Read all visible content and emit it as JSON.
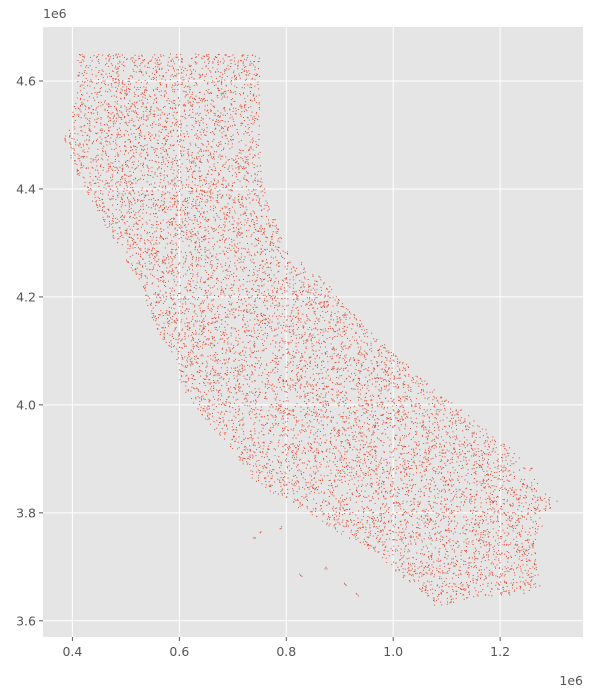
{
  "chart_data": {
    "type": "scatter",
    "title": "",
    "xlabel": "",
    "ylabel": "",
    "style": "ggplot",
    "grid": true,
    "background_color": "#e5e5e5",
    "grid_color": "#ffffff",
    "point_color": "#e24a33",
    "xlim": [
      345000,
      1355000
    ],
    "ylim": [
      3570000,
      4700000
    ],
    "x_ticks": [
      400000,
      600000,
      800000,
      1000000,
      1200000
    ],
    "x_tick_labels": [
      "0.4",
      "0.6",
      "0.8",
      "1.0",
      "1.2"
    ],
    "y_ticks": [
      3600000,
      3800000,
      4000000,
      4200000,
      4400000,
      4600000
    ],
    "y_tick_labels": [
      "3.6",
      "3.8",
      "4.0",
      "4.2",
      "4.4",
      "4.6"
    ],
    "x_offset_text": "1e6",
    "y_offset_text": "1e6",
    "point_count_approx": 10000,
    "outline": [
      [
        408000,
        4650000
      ],
      [
        750000,
        4650000
      ],
      [
        750000,
        4485000
      ],
      [
        760000,
        4400000
      ],
      [
        800000,
        4285000
      ],
      [
        880000,
        4225000
      ],
      [
        945000,
        4150000
      ],
      [
        1010000,
        4090000
      ],
      [
        1080000,
        4025000
      ],
      [
        1140000,
        3985000
      ],
      [
        1190000,
        3940000
      ],
      [
        1255000,
        3895000
      ],
      [
        1275000,
        3840000
      ],
      [
        1315000,
        3828000
      ],
      [
        1290000,
        3805000
      ],
      [
        1265000,
        3740000
      ],
      [
        1275000,
        3665000
      ],
      [
        1245000,
        3648000
      ],
      [
        1160000,
        3645000
      ],
      [
        1080000,
        3625000
      ],
      [
        1040000,
        3668000
      ],
      [
        1005000,
        3685000
      ],
      [
        960000,
        3730000
      ],
      [
        900000,
        3760000
      ],
      [
        840000,
        3800000
      ],
      [
        770000,
        3840000
      ],
      [
        735000,
        3865000
      ],
      [
        700000,
        3918000
      ],
      [
        650000,
        3970000
      ],
      [
        600000,
        4040000
      ],
      [
        595000,
        4080000
      ],
      [
        555000,
        4140000
      ],
      [
        530000,
        4215000
      ],
      [
        485000,
        4290000
      ],
      [
        445000,
        4360000
      ],
      [
        405000,
        4435000
      ],
      [
        385000,
        4490000
      ],
      [
        408000,
        4570000
      ]
    ],
    "island_points": [
      [
        740000,
        3755000
      ],
      [
        752000,
        3762000
      ],
      [
        790000,
        3772000
      ],
      [
        828000,
        3685000
      ],
      [
        875000,
        3698000
      ],
      [
        910000,
        3668000
      ],
      [
        932000,
        3648000
      ]
    ]
  }
}
